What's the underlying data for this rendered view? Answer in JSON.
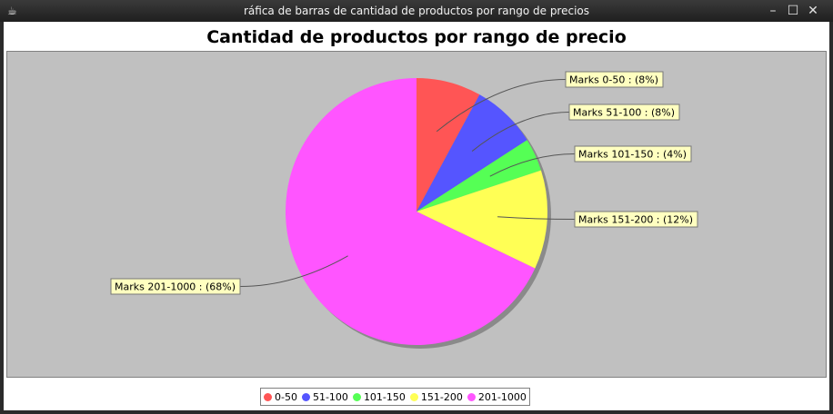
{
  "window": {
    "title": "ráfica de barras de cantidad de productos por rango de precios",
    "icon": "coffee-cup-icon",
    "controls": {
      "minimize": "–",
      "maximize": "☐",
      "close": "✕"
    }
  },
  "chart_data": {
    "type": "pie",
    "title": "Cantidad de productos por rango de precio",
    "slices": [
      {
        "name": "0-50",
        "label": "Marks 0-50 : (8%)",
        "value": 8,
        "color": "#ff5555"
      },
      {
        "name": "51-100",
        "label": "Marks 51-100 : (8%)",
        "value": 8,
        "color": "#5555ff"
      },
      {
        "name": "101-150",
        "label": "Marks 101-150 : (4%)",
        "value": 4,
        "color": "#55ff55"
      },
      {
        "name": "151-200",
        "label": "Marks 151-200 : (12%)",
        "value": 12,
        "color": "#ffff55"
      },
      {
        "name": "201-1000",
        "label": "Marks 201-1000 : (68%)",
        "value": 68,
        "color": "#ff55ff"
      }
    ],
    "legend_position": "bottom",
    "plot_background": "#c0c0c0"
  }
}
